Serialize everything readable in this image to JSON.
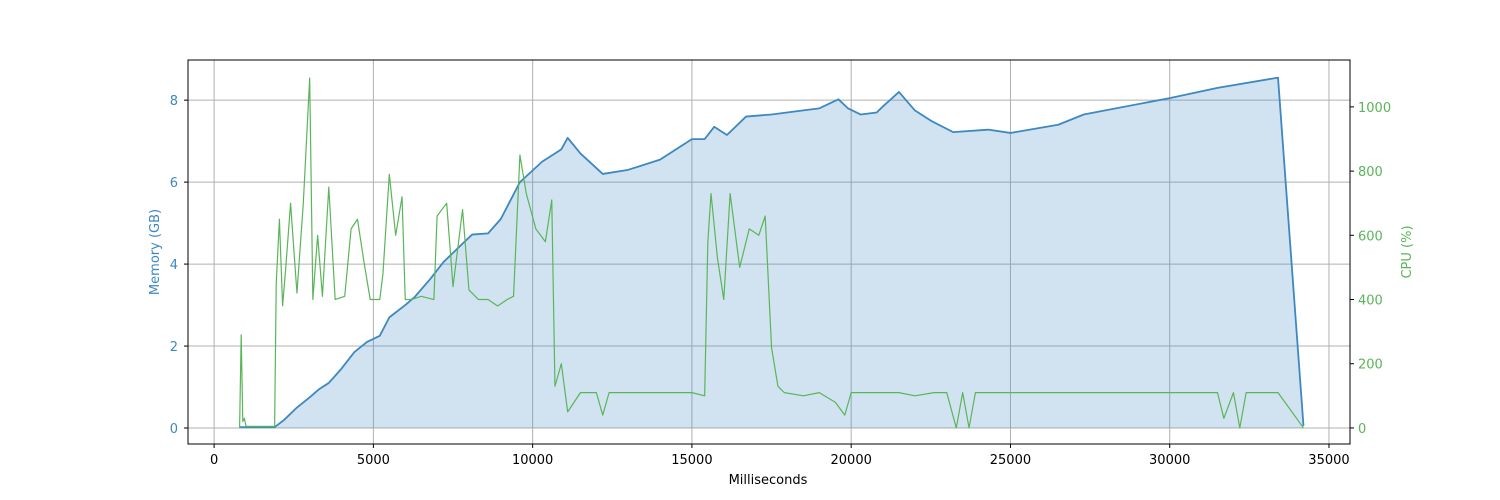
{
  "chart_data": {
    "type": "line",
    "xlabel": "Milliseconds",
    "ylabel": "Memory (GB)",
    "y2label": "CPU (%)",
    "xlim": [
      -820,
      35660
    ],
    "ylim": [
      -0.39,
      8.98
    ],
    "y2lim": [
      -50,
      1146
    ],
    "xticks": [
      0,
      5000,
      10000,
      15000,
      20000,
      25000,
      30000,
      35000
    ],
    "yticks": [
      0,
      2,
      4,
      6,
      8
    ],
    "y2ticks": [
      0,
      200,
      400,
      600,
      800,
      1000
    ],
    "grid": true,
    "series": [
      {
        "name": "Memory (GB)",
        "color": "#3d88c0",
        "area": true,
        "fill_opacity": 0.24,
        "axis": "y",
        "x": [
          800,
          1900,
          2200,
          2600,
          3000,
          3300,
          3600,
          4000,
          4400,
          4800,
          5200,
          5500,
          6000,
          6300,
          6800,
          7200,
          7800,
          8100,
          8600,
          9000,
          9600,
          10300,
          10900,
          11100,
          11500,
          12200,
          13000,
          14000,
          15000,
          15400,
          15700,
          16100,
          16700,
          17500,
          18500,
          19000,
          19600,
          19900,
          20300,
          20800,
          21000,
          21500,
          22000,
          22500,
          23200,
          24300,
          25000,
          26500,
          27300,
          30000,
          31500,
          33400,
          34200
        ],
        "values": [
          0.02,
          0.02,
          0.2,
          0.5,
          0.75,
          0.95,
          1.1,
          1.45,
          1.85,
          2.1,
          2.25,
          2.7,
          3.0,
          3.2,
          3.65,
          4.05,
          4.5,
          4.72,
          4.75,
          5.1,
          6.0,
          6.5,
          6.8,
          7.08,
          6.7,
          6.2,
          6.3,
          6.55,
          7.05,
          7.05,
          7.35,
          7.15,
          7.6,
          7.65,
          7.75,
          7.8,
          8.02,
          7.8,
          7.65,
          7.7,
          7.85,
          8.2,
          7.75,
          7.5,
          7.22,
          7.28,
          7.2,
          7.4,
          7.65,
          8.05,
          8.3,
          8.55,
          0.05
        ]
      },
      {
        "name": "CPU (%)",
        "color": "#5ab55a",
        "area": false,
        "axis": "y2",
        "x": [
          800,
          850,
          900,
          950,
          1000,
          1900,
          1950,
          2050,
          2150,
          2250,
          2400,
          2600,
          2800,
          3000,
          3100,
          3250,
          3400,
          3600,
          3800,
          4100,
          4300,
          4500,
          4700,
          4900,
          5200,
          5300,
          5500,
          5700,
          5900,
          6000,
          6200,
          6500,
          6900,
          7000,
          7300,
          7500,
          7800,
          8000,
          8300,
          8600,
          8900,
          9200,
          9400,
          9600,
          9800,
          10100,
          10400,
          10600,
          10700,
          10900,
          11100,
          11500,
          12000,
          12200,
          12400,
          13000,
          14000,
          15000,
          15400,
          15500,
          15600,
          15800,
          16000,
          16200,
          16500,
          16800,
          17100,
          17300,
          17500,
          17700,
          17900,
          18500,
          19000,
          19500,
          19800,
          20000,
          21000,
          21500,
          22000,
          22600,
          23000,
          23300,
          23500,
          23700,
          23900,
          25000,
          28000,
          30000,
          31500,
          31700,
          32000,
          32200,
          32400,
          33400,
          34200
        ],
        "values": [
          0,
          290,
          20,
          30,
          5,
          5,
          450,
          650,
          380,
          500,
          700,
          420,
          700,
          1090,
          400,
          600,
          410,
          750,
          400,
          410,
          620,
          650,
          520,
          400,
          400,
          480,
          790,
          600,
          720,
          400,
          400,
          410,
          400,
          660,
          700,
          440,
          680,
          430,
          400,
          400,
          380,
          400,
          410,
          850,
          730,
          620,
          580,
          710,
          130,
          200,
          50,
          110,
          110,
          40,
          110,
          110,
          110,
          110,
          100,
          580,
          730,
          530,
          400,
          730,
          500,
          620,
          600,
          660,
          250,
          130,
          110,
          100,
          110,
          80,
          40,
          110,
          110,
          110,
          100,
          110,
          110,
          0,
          110,
          0,
          110,
          110,
          110,
          110,
          110,
          30,
          110,
          0,
          110,
          110,
          0
        ]
      }
    ]
  }
}
